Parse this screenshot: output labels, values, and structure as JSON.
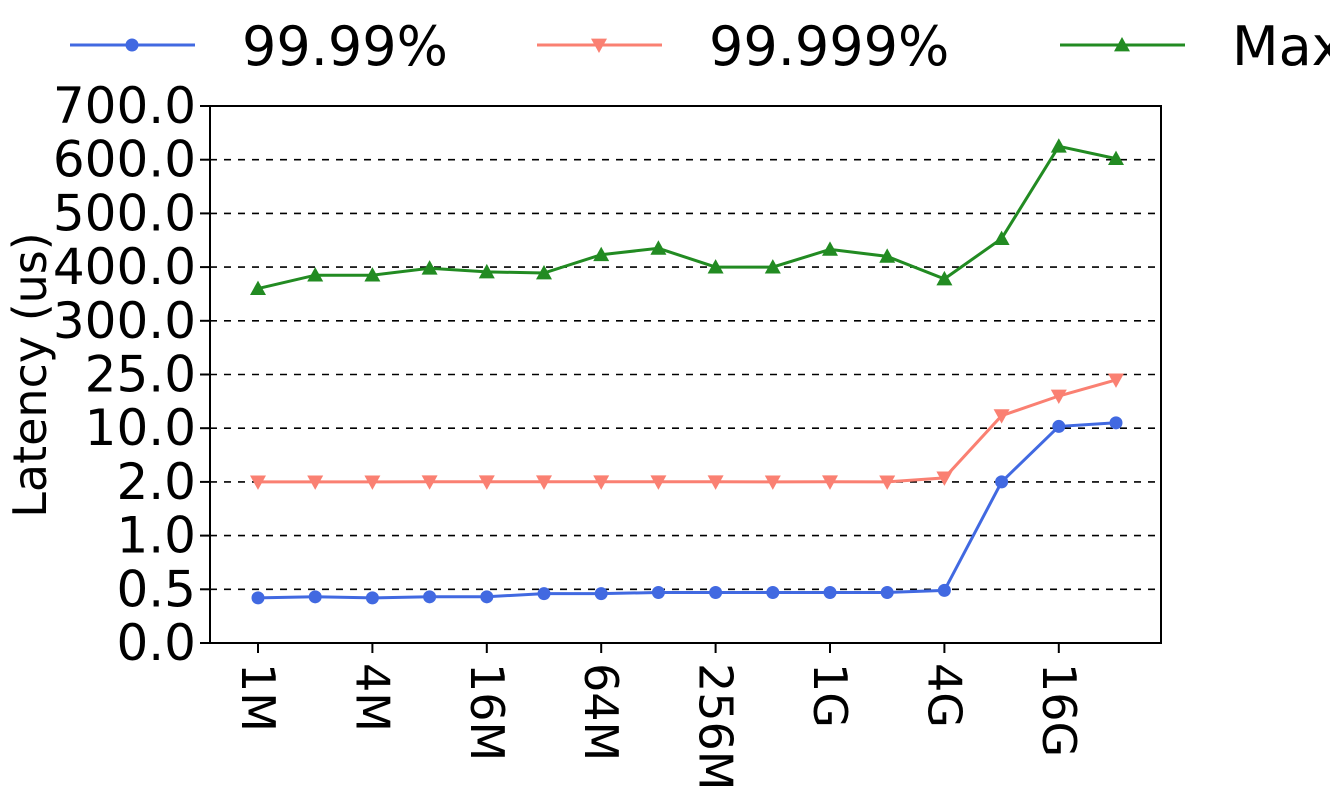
{
  "chart_data": {
    "type": "line",
    "title": "",
    "xlabel": "",
    "ylabel": "Latency (us)",
    "y_tick_labels": [
      "0.0",
      "0.5",
      "1.0",
      "2.0",
      "10.0",
      "25.0",
      "300.0",
      "400.0",
      "500.0",
      "600.0",
      "700.0"
    ],
    "x_tick_labels": [
      "1M",
      "4M",
      "16M",
      "64M",
      "256M",
      "1G",
      "4G",
      "16G"
    ],
    "x": [
      "1M",
      "2M",
      "4M",
      "8M",
      "16M",
      "32M",
      "64M",
      "128M",
      "256M",
      "512M",
      "1G",
      "2G",
      "4G",
      "8G",
      "16G",
      "32G"
    ],
    "grid": "horizontal-dashed",
    "legend_position": "top",
    "series": [
      {
        "name": "99.99%",
        "color": "#4169E1",
        "marker": "circle",
        "values": [
          0.42,
          0.43,
          0.42,
          0.43,
          0.43,
          0.46,
          0.46,
          0.47,
          0.47,
          0.47,
          0.47,
          0.47,
          0.49,
          2.0,
          10.5,
          11.5
        ]
      },
      {
        "name": "99.999%",
        "color": "#FA8072",
        "marker": "triangle-down",
        "values": [
          2.0,
          2.0,
          2.0,
          2.02,
          2.01,
          2.01,
          2.01,
          2.01,
          2.01,
          2.0,
          2.01,
          2.0,
          2.6,
          13.5,
          19.0,
          23.5
        ]
      },
      {
        "name": "Max",
        "color": "#228B22",
        "marker": "triangle-up",
        "values": [
          360,
          385,
          385,
          398,
          391,
          389,
          423,
          435,
          400,
          400,
          433,
          420,
          378,
          453,
          625,
          602
        ]
      }
    ]
  }
}
